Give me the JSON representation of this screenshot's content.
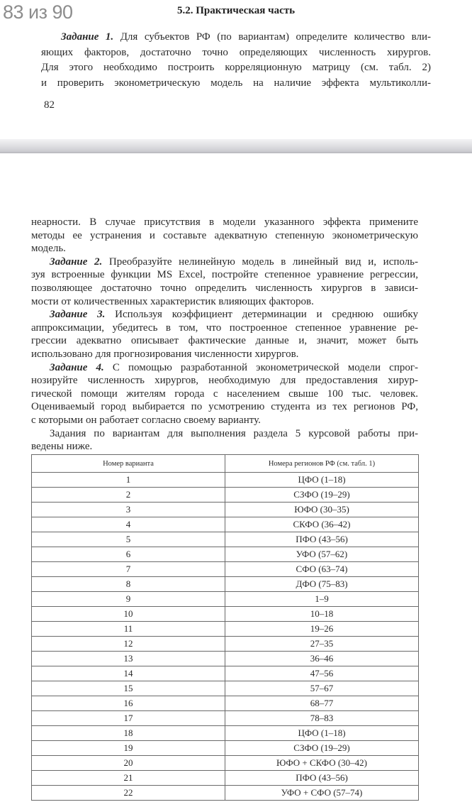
{
  "viewer": {
    "page_counter": "83 из 90"
  },
  "top_page": {
    "running_head": "5.2. Практическая часть",
    "paragraph1": {
      "label": "Задание 1.",
      "first": "Для субъектов РФ (по вариантам) определите количество вли-",
      "lines": [
        "яющих факторов, достаточно точно определяющих численность хирургов.",
        "Для этого необходимо построить корреляционную матрицу (см. табл. 2)",
        "и проверить эконометрическую модель на наличие эффекта мультиколли-"
      ]
    },
    "folio": "82"
  },
  "bottom_page": {
    "cont_lines": [
      "неарности. В случае присутствия в модели указанного эффекта примените",
      "методы ее устранения и составьте адекватную степенную эконометрическую",
      "модель."
    ],
    "tasks": [
      {
        "label": "Задание 2.",
        "first": "Преобразуйте нелинейную модель в линейный вид и, исполь-",
        "lines": [
          "зуя встроенные функции MS Excel, постройте степенное уравнение регрессии,",
          "позволяющее достаточно точно определить численность хирургов в зависи-",
          "мости от количественных характеристик влияющих факторов."
        ]
      },
      {
        "label": "Задание 3.",
        "first": "Используя коэффициент детерминации и среднюю ошибку",
        "lines": [
          "аппроксимации, убедитесь в том, что построенное степенное уравнение ре-",
          "грессии адекватно описывает фактические данные и, значит, может быть",
          "использовано для прогнозирования численности хирургов."
        ]
      },
      {
        "label": "Задание 4.",
        "first": "С помощью разработанной эконометрической модели спрог-",
        "lines": [
          "нозируйте численность хирургов, необходимую для предоставления хирур-",
          "гической помощи жителям города с населением свыше 100 тыс. человек.",
          "Оцениваемый город выбирается по усмотрению студента из тех регионов РФ,",
          "с которыми он работает согласно своему варианту."
        ]
      }
    ],
    "intro_lines": [
      "Задания по вариантам для выполнения раздела 5 курсовой работы при-",
      "ведены ниже."
    ],
    "table": {
      "headers": [
        "Номер варианта",
        "Номера регионов РФ (см. табл. 1)"
      ],
      "rows": [
        [
          "1",
          "ЦФО (1–18)"
        ],
        [
          "2",
          "СЗФО (19–29)"
        ],
        [
          "3",
          "ЮФО (30–35)"
        ],
        [
          "4",
          "СКФО (36–42)"
        ],
        [
          "5",
          "ПФО (43–56)"
        ],
        [
          "6",
          "УФО (57–62)"
        ],
        [
          "7",
          "СФО (63–74)"
        ],
        [
          "8",
          "ДФО (75–83)"
        ],
        [
          "9",
          "1–9"
        ],
        [
          "10",
          "10–18"
        ],
        [
          "11",
          "19–26"
        ],
        [
          "12",
          "27–35"
        ],
        [
          "13",
          "36–46"
        ],
        [
          "14",
          "47–56"
        ],
        [
          "15",
          "57–67"
        ],
        [
          "16",
          "68–77"
        ],
        [
          "17",
          "78–83"
        ],
        [
          "18",
          "ЦФО (1–18)"
        ],
        [
          "19",
          "СЗФО (19–29)"
        ],
        [
          "20",
          "ЮФО + СКФО (30–42)"
        ],
        [
          "21",
          "ПФО (43–56)"
        ],
        [
          "22",
          "УФО + СФО (57–74)"
        ]
      ]
    }
  }
}
